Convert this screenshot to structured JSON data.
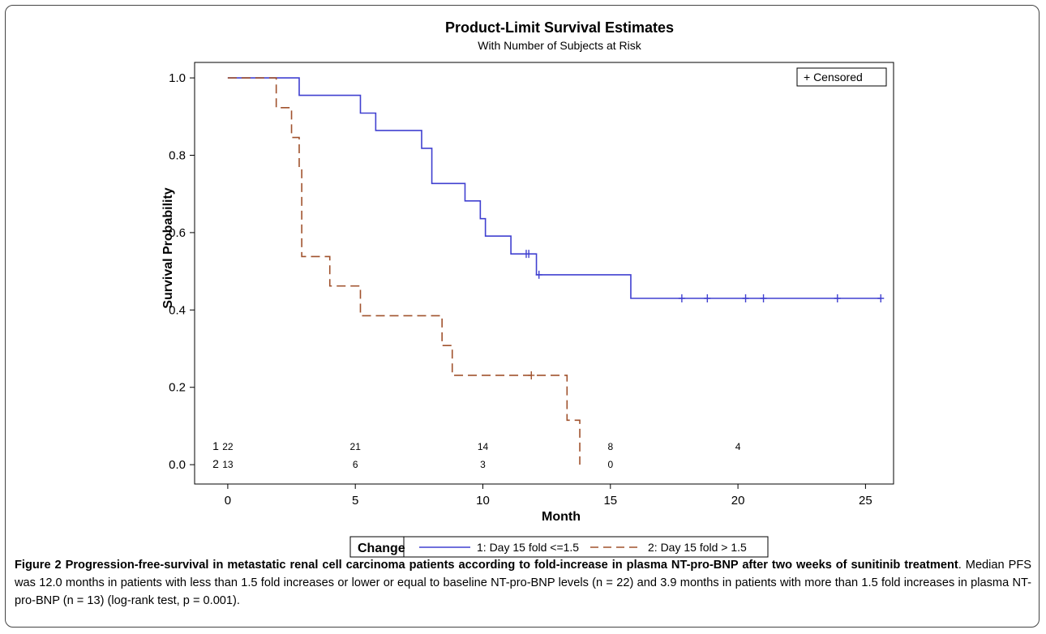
{
  "chart_data": {
    "type": "line",
    "title": "Product-Limit Survival Estimates",
    "subtitle": "With Number of Subjects at Risk",
    "xlabel": "Month",
    "ylabel": "Survival Probability",
    "xlim": [
      -1.3,
      26.1
    ],
    "ylim": [
      -0.05,
      1.04
    ],
    "x_ticks": [
      0,
      5,
      10,
      15,
      20,
      25
    ],
    "y_ticks": [
      "0.0",
      "0.2",
      "0.4",
      "0.6",
      "0.8",
      "1.0"
    ],
    "grid": false,
    "censored_legend": "+ Censored",
    "legend": {
      "position": "bottom",
      "title": "Change",
      "entries": [
        "1: Day 15 fold <=1.5",
        "2: Day 15 fold > 1.5"
      ]
    },
    "series": [
      {
        "name": "1: Day 15 fold <=1.5",
        "color": "#4040d0",
        "dash": "solid",
        "steps": [
          [
            0,
            1.0
          ],
          [
            2.8,
            0.955
          ],
          [
            5.2,
            0.909
          ],
          [
            5.8,
            0.864
          ],
          [
            7.6,
            0.818
          ],
          [
            8.0,
            0.727
          ],
          [
            9.3,
            0.682
          ],
          [
            9.9,
            0.636
          ],
          [
            10.1,
            0.591
          ],
          [
            11.1,
            0.545
          ],
          [
            12.1,
            0.491
          ],
          [
            15.8,
            0.43
          ],
          [
            25.6,
            0.43
          ]
        ],
        "censored": [
          [
            11.7,
            0.545
          ],
          [
            11.8,
            0.545
          ],
          [
            12.2,
            0.491
          ],
          [
            17.8,
            0.43
          ],
          [
            18.8,
            0.43
          ],
          [
            20.3,
            0.43
          ],
          [
            21.0,
            0.43
          ],
          [
            23.9,
            0.43
          ],
          [
            25.6,
            0.43
          ]
        ]
      },
      {
        "name": "2: Day 15 fold > 1.5",
        "color": "#a0522d",
        "dash": "dashed",
        "steps": [
          [
            0,
            1.0
          ],
          [
            1.9,
            0.923
          ],
          [
            2.5,
            0.846
          ],
          [
            2.8,
            0.769
          ],
          [
            2.9,
            0.538
          ],
          [
            4.0,
            0.462
          ],
          [
            5.2,
            0.385
          ],
          [
            8.4,
            0.308
          ],
          [
            8.8,
            0.231
          ],
          [
            13.3,
            0.115
          ],
          [
            13.8,
            0.0
          ]
        ],
        "censored": [
          [
            11.9,
            0.231
          ]
        ]
      }
    ],
    "at_risk": {
      "times": [
        0,
        5,
        10,
        15,
        20
      ],
      "rows": [
        {
          "label": "1",
          "values": [
            "22",
            "21",
            "14",
            "8",
            "4"
          ]
        },
        {
          "label": "2",
          "values": [
            "13",
            "6",
            "3",
            "0",
            ""
          ]
        }
      ]
    }
  },
  "caption": {
    "bold": "Figure 2 Progression-free-survival in metastatic renal cell carcinoma patients according to fold-increase in plasma NT-pro-BNP after two weeks of sunitinib treatment",
    "text": ". Median PFS was 12.0 months in patients with less than 1.5 fold increases or lower or equal to baseline NT-pro-BNP levels (n = 22) and 3.9 months in patients with more than 1.5 fold increases in plasma NT-pro-BNP (n = 13) (log-rank test, p = 0.001)."
  }
}
